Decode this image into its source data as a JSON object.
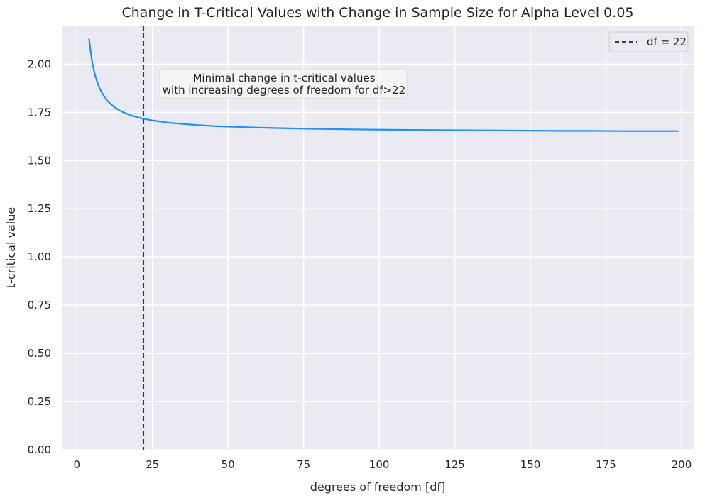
{
  "chart_data": {
    "type": "line",
    "title": "Change in T-Critical Values with Change in Sample Size for Alpha Level 0.05",
    "xlabel": "degrees of freedom [df]",
    "ylabel": "t-critical value",
    "xlim": [
      -5,
      204
    ],
    "ylim": [
      0,
      2.2
    ],
    "xticks": [
      0,
      25,
      50,
      75,
      100,
      125,
      150,
      175,
      200
    ],
    "xtick_labels": [
      "0",
      "25",
      "50",
      "75",
      "100",
      "125",
      "150",
      "175",
      "200"
    ],
    "yticks": [
      0,
      0.25,
      0.5,
      0.75,
      1.0,
      1.25,
      1.5,
      1.75,
      2.0
    ],
    "ytick_labels": [
      "0.00",
      "0.25",
      "0.50",
      "0.75",
      "1.00",
      "1.25",
      "1.50",
      "1.75",
      "2.00"
    ],
    "grid": true,
    "background": "#EAEAF2",
    "series": [
      {
        "color": "#1E90FF",
        "x": [
          4,
          5,
          6,
          7,
          8,
          9,
          10,
          11,
          12,
          13,
          14,
          15,
          16,
          17,
          18,
          19,
          20,
          22,
          25,
          30,
          35,
          40,
          45,
          50,
          60,
          70,
          80,
          90,
          100,
          110,
          120,
          130,
          140,
          150,
          160,
          170,
          180,
          190,
          199
        ],
        "y": [
          2.132,
          2.015,
          1.943,
          1.895,
          1.86,
          1.833,
          1.812,
          1.796,
          1.782,
          1.771,
          1.761,
          1.753,
          1.746,
          1.74,
          1.734,
          1.729,
          1.725,
          1.717,
          1.708,
          1.697,
          1.69,
          1.684,
          1.679,
          1.676,
          1.671,
          1.667,
          1.664,
          1.662,
          1.66,
          1.659,
          1.658,
          1.657,
          1.656,
          1.655,
          1.654,
          1.654,
          1.653,
          1.653,
          1.653
        ]
      }
    ],
    "vline": {
      "x": 22,
      "label": "df = 22",
      "color": "#2F4050",
      "style": "dashed"
    },
    "legend": {
      "position": "top-right",
      "label": "df = 22"
    },
    "annotation": {
      "lines": [
        "Minimal change in t-critical values",
        "with increasing degrees of freedom for df>22"
      ]
    }
  }
}
